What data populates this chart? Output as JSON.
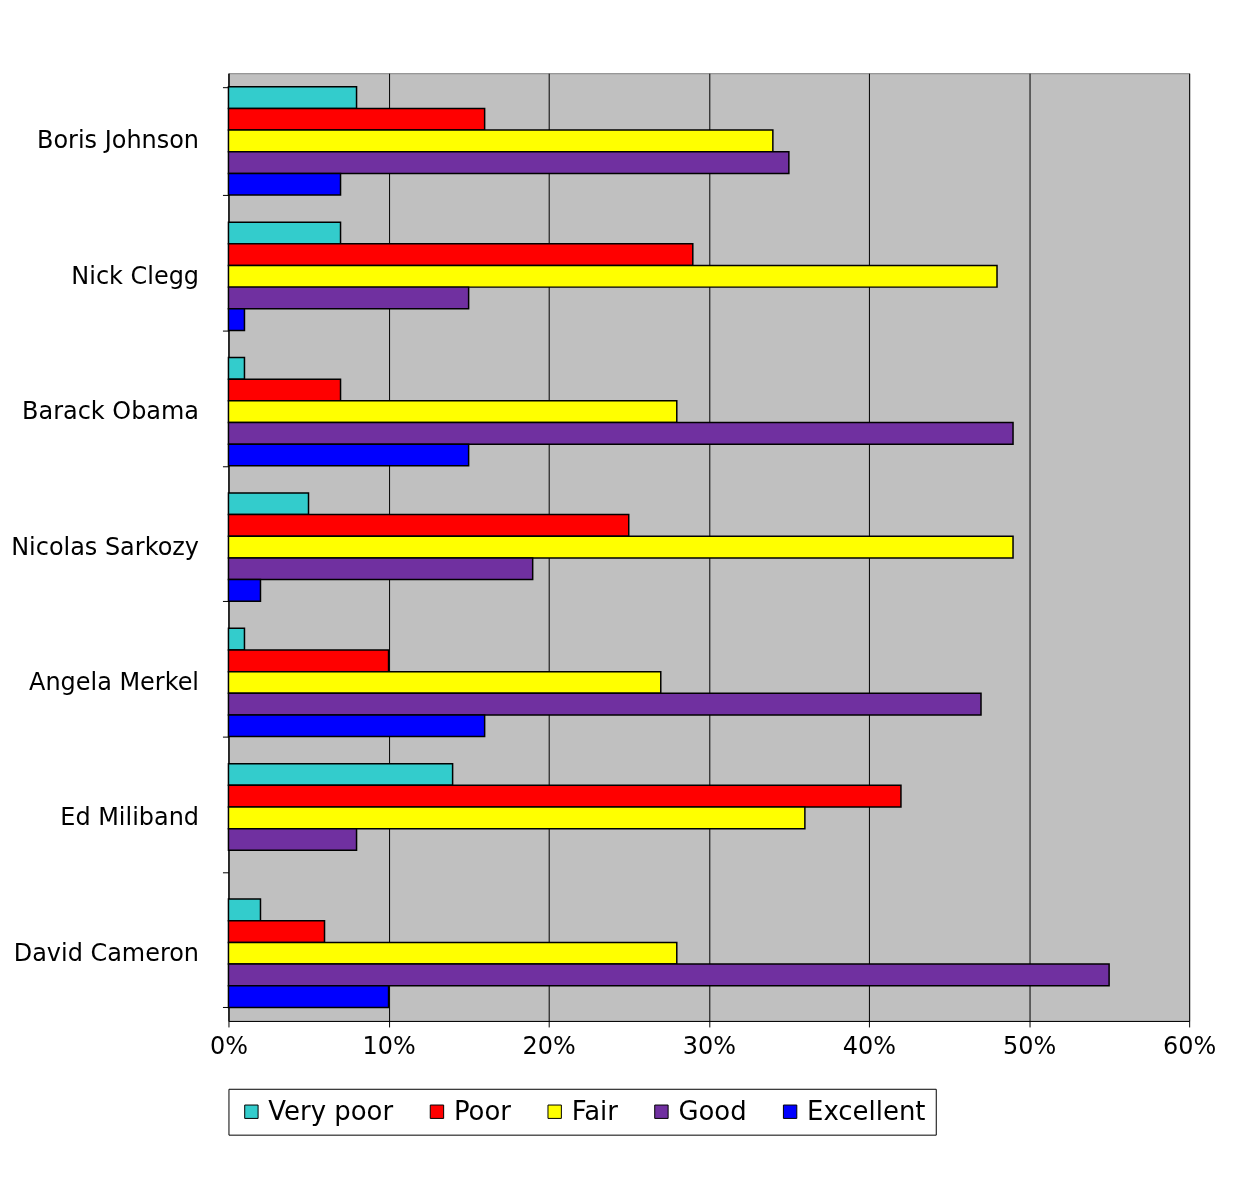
{
  "chart_data": {
    "type": "bar",
    "orientation": "horizontal",
    "categories": [
      "Boris Johnson",
      "Nick Clegg",
      "Barack Obama",
      "Nicolas Sarkozy",
      "Angela Merkel",
      "Ed Miliband",
      "David Cameron"
    ],
    "series": [
      {
        "name": "Very poor",
        "color": "#33cccc",
        "values": [
          8,
          7,
          1,
          5,
          1,
          14,
          2
        ]
      },
      {
        "name": "Poor",
        "color": "#ff0000",
        "values": [
          16,
          29,
          7,
          25,
          10,
          42,
          6
        ]
      },
      {
        "name": "Fair",
        "color": "#ffff00",
        "values": [
          34,
          48,
          28,
          49,
          27,
          36,
          28
        ]
      },
      {
        "name": "Good",
        "color": "#7030a0",
        "values": [
          35,
          15,
          49,
          19,
          47,
          8,
          55
        ]
      },
      {
        "name": "Excellent",
        "color": "#0000ff",
        "values": [
          7,
          1,
          15,
          2,
          16,
          null,
          10
        ]
      }
    ],
    "xlim": [
      0,
      60
    ],
    "xticks": [
      {
        "value": 0,
        "label": "0%"
      },
      {
        "value": 10,
        "label": "10%"
      },
      {
        "value": 20,
        "label": "20%"
      },
      {
        "value": 30,
        "label": "30%"
      },
      {
        "value": 40,
        "label": "40%"
      },
      {
        "value": 50,
        "label": "50%"
      },
      {
        "value": 60,
        "label": "60%"
      }
    ],
    "grid": "x",
    "legend": "bottom"
  }
}
